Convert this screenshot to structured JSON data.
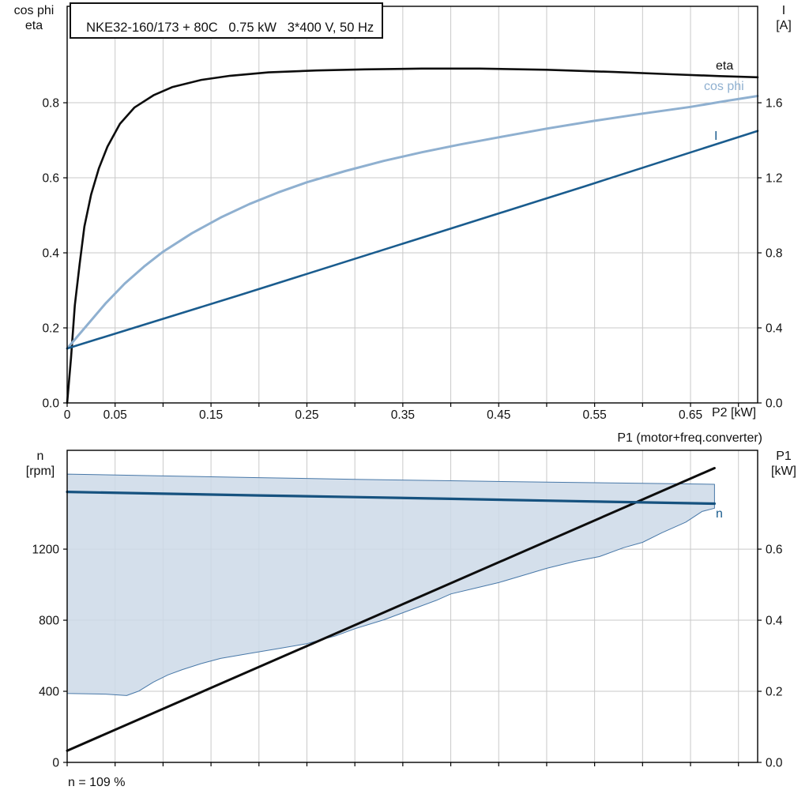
{
  "title": "NKE32-160/173 + 80C   0.75 kW   3*400 V, 50 Hz",
  "labels": {
    "top_left_axis": [
      "cos phi",
      "eta"
    ],
    "top_right_axis": [
      "I",
      "[A]"
    ],
    "x_axis": "P2 [kW]",
    "bottom_left_axis": [
      "n",
      "[rpm]"
    ],
    "bottom_right_axis": [
      "P1",
      "[kW]"
    ],
    "p1_annotation": "P1 (motor+freq.converter)",
    "speed_note": "n = 109 %",
    "curve_eta": "eta",
    "curve_cosphi": "cos phi",
    "curve_current": "I",
    "curve_n": "n"
  },
  "colors": {
    "grid": "#c9c9c9",
    "frame": "#000000",
    "eta": "#0d0d0d",
    "cosphi": "#8fb0d0",
    "current": "#1a5c8e",
    "n_curve": "#16527f",
    "p1_line": "#0d0d0d",
    "band_fill": "#cdd9e8",
    "band_stroke": "#4878a8"
  },
  "chart_data": [
    {
      "type": "line",
      "panel": "top",
      "title": "NKE32-160/173 + 80C   0.75 kW   3*400 V, 50 Hz",
      "xlabel": "P2 [kW]",
      "x_range": [
        0,
        0.72
      ],
      "x_grid_step": 0.05,
      "x_tick_labels": [
        {
          "v": 0,
          "t": "0"
        },
        {
          "v": 0.05,
          "t": "0.05"
        },
        {
          "v": 0.15,
          "t": "0.15"
        },
        {
          "v": 0.25,
          "t": "0.25"
        },
        {
          "v": 0.35,
          "t": "0.35"
        },
        {
          "v": 0.45,
          "t": "0.45"
        },
        {
          "v": 0.55,
          "t": "0.55"
        },
        {
          "v": 0.65,
          "t": "0.65"
        }
      ],
      "left_axis": {
        "label": "cos phi / eta",
        "range": [
          0,
          1.057
        ],
        "grid": [
          0.2,
          0.4,
          0.6,
          0.8
        ],
        "ticks": [
          {
            "v": 0,
            "t": "0.0"
          },
          {
            "v": 0.2,
            "t": "0.2"
          },
          {
            "v": 0.4,
            "t": "0.4"
          },
          {
            "v": 0.6,
            "t": "0.6"
          },
          {
            "v": 0.8,
            "t": "0.8"
          }
        ]
      },
      "right_axis": {
        "label": "I [A]",
        "range": [
          0,
          2.114
        ],
        "ticks": [
          {
            "v": 0,
            "t": "0.0"
          },
          {
            "v": 0.4,
            "t": "0.4"
          },
          {
            "v": 0.8,
            "t": "0.8"
          },
          {
            "v": 1.2,
            "t": "1.2"
          },
          {
            "v": 1.6,
            "t": "1.6"
          }
        ]
      },
      "series": [
        {
          "id": "eta",
          "name": "eta",
          "axis": "left",
          "color": "#0d0d0d",
          "width": 2.6,
          "points": [
            [
              0,
              0
            ],
            [
              0.004,
              0.12
            ],
            [
              0.008,
              0.26
            ],
            [
              0.013,
              0.37
            ],
            [
              0.018,
              0.47
            ],
            [
              0.025,
              0.555
            ],
            [
              0.033,
              0.625
            ],
            [
              0.042,
              0.683
            ],
            [
              0.055,
              0.744
            ],
            [
              0.07,
              0.787
            ],
            [
              0.09,
              0.82
            ],
            [
              0.11,
              0.842
            ],
            [
              0.14,
              0.861
            ],
            [
              0.17,
              0.872
            ],
            [
              0.21,
              0.881
            ],
            [
              0.26,
              0.886
            ],
            [
              0.31,
              0.889
            ],
            [
              0.37,
              0.891
            ],
            [
              0.43,
              0.891
            ],
            [
              0.5,
              0.888
            ],
            [
              0.57,
              0.882
            ],
            [
              0.63,
              0.876
            ],
            [
              0.68,
              0.871
            ],
            [
              0.72,
              0.868
            ]
          ]
        },
        {
          "id": "cosphi",
          "name": "cos phi",
          "axis": "left",
          "color": "#8fb0d0",
          "width": 3,
          "points": [
            [
              0,
              0.145
            ],
            [
              0.02,
              0.205
            ],
            [
              0.04,
              0.265
            ],
            [
              0.06,
              0.318
            ],
            [
              0.08,
              0.363
            ],
            [
              0.1,
              0.403
            ],
            [
              0.13,
              0.452
            ],
            [
              0.16,
              0.494
            ],
            [
              0.19,
              0.53
            ],
            [
              0.22,
              0.561
            ],
            [
              0.25,
              0.588
            ],
            [
              0.29,
              0.618
            ],
            [
              0.33,
              0.645
            ],
            [
              0.37,
              0.668
            ],
            [
              0.41,
              0.689
            ],
            [
              0.45,
              0.708
            ],
            [
              0.5,
              0.731
            ],
            [
              0.55,
              0.752
            ],
            [
              0.6,
              0.771
            ],
            [
              0.65,
              0.789
            ],
            [
              0.69,
              0.806
            ],
            [
              0.72,
              0.818
            ]
          ]
        },
        {
          "id": "current",
          "name": "I",
          "axis": "right",
          "color": "#1a5c8e",
          "width": 2.6,
          "points": [
            [
              0,
              0.29
            ],
            [
              0.18,
              0.575
            ],
            [
              0.36,
              0.865
            ],
            [
              0.54,
              1.155
            ],
            [
              0.72,
              1.45
            ]
          ]
        }
      ]
    },
    {
      "type": "line",
      "panel": "bottom",
      "xlabel": "P2 [kW]",
      "x_range": [
        0,
        0.72
      ],
      "x_grid_step": 0.05,
      "left_axis": {
        "label": "n [rpm]",
        "range": [
          0,
          1756
        ],
        "grid": [
          400,
          800,
          1200
        ],
        "ticks": [
          {
            "v": 0,
            "t": "0"
          },
          {
            "v": 400,
            "t": "400"
          },
          {
            "v": 800,
            "t": "800"
          },
          {
            "v": 1200,
            "t": "1200"
          }
        ]
      },
      "right_axis": {
        "label": "P1 [kW]",
        "range": [
          0,
          0.878
        ],
        "ticks": [
          {
            "v": 0,
            "t": "0.0"
          },
          {
            "v": 0.2,
            "t": "0.2"
          },
          {
            "v": 0.4,
            "t": "0.4"
          },
          {
            "v": 0.6,
            "t": "0.6"
          }
        ]
      },
      "band": {
        "name": "speed-operating-range",
        "fill": "#cdd9e8",
        "opacity": 0.85,
        "stroke": "#4878a8",
        "upper": [
          [
            0,
            1622
          ],
          [
            0.1,
            1612
          ],
          [
            0.2,
            1602
          ],
          [
            0.3,
            1593
          ],
          [
            0.4,
            1585
          ],
          [
            0.5,
            1577
          ],
          [
            0.6,
            1570
          ],
          [
            0.675,
            1565
          ]
        ],
        "lower": [
          [
            0,
            388
          ],
          [
            0.04,
            384
          ],
          [
            0.062,
            376
          ],
          [
            0.075,
            402
          ],
          [
            0.09,
            452
          ],
          [
            0.105,
            492
          ],
          [
            0.12,
            522
          ],
          [
            0.14,
            556
          ],
          [
            0.16,
            585
          ],
          [
            0.19,
            613
          ],
          [
            0.22,
            640
          ],
          [
            0.25,
            668
          ],
          [
            0.28,
            712
          ],
          [
            0.3,
            752
          ],
          [
            0.33,
            802
          ],
          [
            0.36,
            862
          ],
          [
            0.385,
            912
          ],
          [
            0.4,
            948
          ],
          [
            0.425,
            980
          ],
          [
            0.45,
            1012
          ],
          [
            0.48,
            1060
          ],
          [
            0.5,
            1092
          ],
          [
            0.53,
            1132
          ],
          [
            0.555,
            1158
          ],
          [
            0.58,
            1208
          ],
          [
            0.6,
            1238
          ],
          [
            0.62,
            1292
          ],
          [
            0.645,
            1352
          ],
          [
            0.662,
            1412
          ],
          [
            0.675,
            1430
          ]
        ]
      },
      "series": [
        {
          "id": "p1",
          "name": "P1 (motor+freq.converter)",
          "axis": "right",
          "color": "#0d0d0d",
          "width": 3,
          "points": [
            [
              0,
              0.033
            ],
            [
              0.675,
              0.828
            ]
          ]
        },
        {
          "id": "n",
          "name": "n",
          "axis": "left",
          "color": "#16527f",
          "width": 3.2,
          "points": [
            [
              0,
              1522
            ],
            [
              0.1,
              1512
            ],
            [
              0.2,
              1502
            ],
            [
              0.3,
              1493
            ],
            [
              0.4,
              1483
            ],
            [
              0.5,
              1473
            ],
            [
              0.6,
              1463
            ],
            [
              0.675,
              1456
            ]
          ]
        }
      ],
      "annotation": "n = 109 %"
    }
  ]
}
